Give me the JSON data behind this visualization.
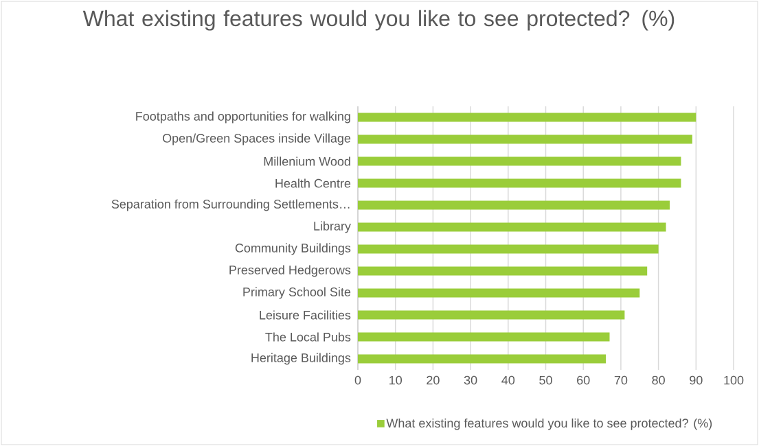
{
  "chart_data": {
    "type": "bar",
    "orientation": "horizontal",
    "title": "What existing features would you like to see protected? (%)",
    "categories": [
      "Footpaths and opportunities for walking",
      "Open/Green Spaces inside Village",
      "Millenium Wood",
      "Health Centre",
      "Separation from Surrounding Settlements…",
      "Library",
      "Community Buildings",
      "Preserved Hedgerows",
      "Primary School Site",
      "Leisure Facilities",
      "The Local Pubs",
      "Heritage Buildings"
    ],
    "series": [
      {
        "name": "What existing features would you like to see protected? (%)",
        "color": "#9acd3a",
        "values": [
          90,
          89,
          86,
          86,
          83,
          82,
          80,
          77,
          75,
          71,
          67,
          66
        ]
      }
    ],
    "xlim": [
      0,
      100
    ],
    "xticks": [
      0,
      10,
      20,
      30,
      40,
      50,
      60,
      70,
      80,
      90,
      100
    ],
    "grid": "x",
    "legend": "bottom"
  }
}
